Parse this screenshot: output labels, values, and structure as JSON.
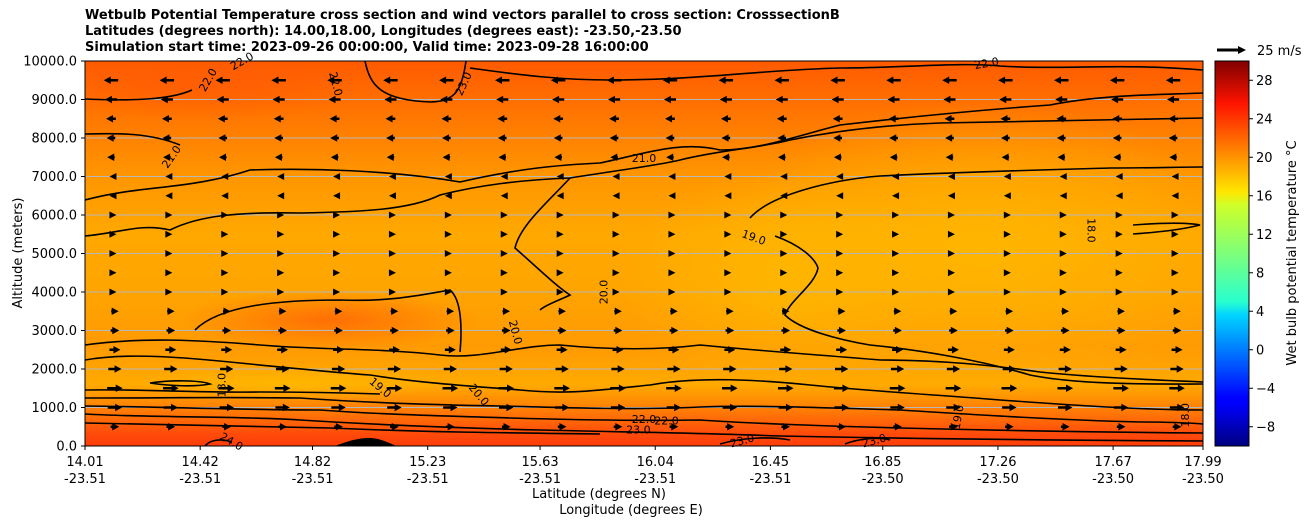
{
  "chart_data": {
    "type": "heatmap",
    "title_lines": [
      "Wetbulb Potential Temperature cross section and wind vectors parallel to cross section: CrosssectionB",
      "Latitudes (degrees north): 14.00,18.00, Longitudes (degrees east): -23.50,-23.50",
      "Simulation start time: 2023-09-26 00:00:00, Valid time: 2023-09-28 16:00:00"
    ],
    "ylabel": "Altitude (meters)",
    "xlabel_lat": "Latitude (degrees N)",
    "xlabel_lon": "Longitude (degrees E)",
    "ylim": [
      0,
      10000
    ],
    "xlim": [
      14.01,
      17.99
    ],
    "y_ticks": [
      {
        "value": 0,
        "label": "0.0"
      },
      {
        "value": 1000,
        "label": "1000.0"
      },
      {
        "value": 2000,
        "label": "2000.0"
      },
      {
        "value": 3000,
        "label": "3000.0"
      },
      {
        "value": 4000,
        "label": "4000.0"
      },
      {
        "value": 5000,
        "label": "5000.0"
      },
      {
        "value": 6000,
        "label": "6000.0"
      },
      {
        "value": 7000,
        "label": "7000.0"
      },
      {
        "value": 8000,
        "label": "8000.0"
      },
      {
        "value": 9000,
        "label": "9000.0"
      },
      {
        "value": 10000,
        "label": "10000.0"
      }
    ],
    "x_ticks": [
      {
        "lat": 14.01,
        "lat_label": "14.01",
        "lon_label": "-23.51"
      },
      {
        "lat": 14.42,
        "lat_label": "14.42",
        "lon_label": "-23.51"
      },
      {
        "lat": 14.82,
        "lat_label": "14.82",
        "lon_label": "-23.51"
      },
      {
        "lat": 15.23,
        "lat_label": "15.23",
        "lon_label": "-23.51"
      },
      {
        "lat": 15.63,
        "lat_label": "15.63",
        "lon_label": "-23.51"
      },
      {
        "lat": 16.04,
        "lat_label": "16.04",
        "lon_label": "-23.51"
      },
      {
        "lat": 16.45,
        "lat_label": "16.45",
        "lon_label": "-23.51"
      },
      {
        "lat": 16.85,
        "lat_label": "16.85",
        "lon_label": "-23.50"
      },
      {
        "lat": 17.26,
        "lat_label": "17.26",
        "lon_label": "-23.50"
      },
      {
        "lat": 17.67,
        "lat_label": "17.67",
        "lon_label": "-23.50"
      },
      {
        "lat": 17.99,
        "lat_label": "17.99",
        "lon_label": "-23.50"
      }
    ],
    "colorbar": {
      "label": "Wet bulb potential temperature °C",
      "min": -10,
      "max": 30,
      "ticks": [
        -8,
        -4,
        0,
        4,
        8,
        12,
        16,
        20,
        24,
        28
      ],
      "tick_labels": [
        "−8",
        "−4",
        "0",
        "4",
        "8",
        "12",
        "16",
        "20",
        "24",
        "28"
      ],
      "colormap": "jet"
    },
    "wind_reference": {
      "speed": 25,
      "label": "25 m/s"
    },
    "wind_bands": [
      {
        "altitude": 9500,
        "direction": "south",
        "speed": 9
      },
      {
        "altitude": 9000,
        "direction": "south",
        "speed": 7
      },
      {
        "altitude": 8500,
        "direction": "south",
        "speed": 5
      },
      {
        "altitude": 8000,
        "direction": "south",
        "speed": 4
      },
      {
        "altitude": 7500,
        "direction": "south",
        "speed": 3
      },
      {
        "altitude": 7000,
        "direction": "south",
        "speed": 2
      },
      {
        "altitude": 6500,
        "direction": "south",
        "speed": 1
      },
      {
        "altitude": 6000,
        "direction": "north",
        "speed": 1
      },
      {
        "altitude": 5500,
        "direction": "north",
        "speed": 1
      },
      {
        "altitude": 5000,
        "direction": "north",
        "speed": 1
      },
      {
        "altitude": 4500,
        "direction": "north",
        "speed": 2
      },
      {
        "altitude": 4000,
        "direction": "north",
        "speed": 2
      },
      {
        "altitude": 3500,
        "direction": "north",
        "speed": 3
      },
      {
        "altitude": 3000,
        "direction": "north",
        "speed": 4
      },
      {
        "altitude": 2500,
        "direction": "north",
        "speed": 6
      },
      {
        "altitude": 2000,
        "direction": "north",
        "speed": 8
      },
      {
        "altitude": 1500,
        "direction": "north",
        "speed": 10
      },
      {
        "altitude": 1000,
        "direction": "north",
        "speed": 9
      },
      {
        "altitude": 500,
        "direction": "north",
        "speed": 4
      }
    ],
    "contour_labels": [
      {
        "text": "22.0",
        "lat": 14.45,
        "alt": 9500,
        "angle": -60
      },
      {
        "text": "22.0",
        "lat": 14.9,
        "alt": 9400,
        "angle": 75
      },
      {
        "text": "23.0",
        "lat": 15.36,
        "alt": 9400,
        "angle": -65
      },
      {
        "text": "22.0",
        "lat": 14.57,
        "alt": 9980,
        "angle": -30
      },
      {
        "text": "22.0",
        "lat": 17.22,
        "alt": 9920,
        "angle": -10
      },
      {
        "text": "21.0",
        "lat": 14.32,
        "alt": 7500,
        "angle": -55
      },
      {
        "text": "21.0",
        "lat": 16.0,
        "alt": 7450,
        "angle": 0
      },
      {
        "text": "19.0",
        "lat": 16.39,
        "alt": 5400,
        "angle": 20
      },
      {
        "text": "18.0",
        "lat": 17.59,
        "alt": 5600,
        "angle": 90
      },
      {
        "text": "20.0",
        "lat": 15.86,
        "alt": 4000,
        "angle": -90
      },
      {
        "text": "20.0",
        "lat": 15.54,
        "alt": 2950,
        "angle": 75
      },
      {
        "text": "18.0",
        "lat": 14.5,
        "alt": 1580,
        "angle": -90
      },
      {
        "text": "19.0",
        "lat": 15.06,
        "alt": 1500,
        "angle": 40
      },
      {
        "text": "20.0",
        "lat": 15.41,
        "alt": 1320,
        "angle": 50
      },
      {
        "text": "22.0",
        "lat": 16.0,
        "alt": 680,
        "angle": 0
      },
      {
        "text": "22.0",
        "lat": 16.08,
        "alt": 630,
        "angle": 0
      },
      {
        "text": "23.0",
        "lat": 15.98,
        "alt": 400,
        "angle": 0
      },
      {
        "text": "23.0",
        "lat": 16.35,
        "alt": 120,
        "angle": -15
      },
      {
        "text": "23.0",
        "lat": 16.82,
        "alt": 120,
        "angle": -15
      },
      {
        "text": "24.0",
        "lat": 14.53,
        "alt": 100,
        "angle": 30
      },
      {
        "text": "19.0",
        "lat": 17.12,
        "alt": 750,
        "angle": -80
      },
      {
        "text": "18.0",
        "lat": 17.93,
        "alt": 800,
        "angle": -90
      }
    ]
  }
}
